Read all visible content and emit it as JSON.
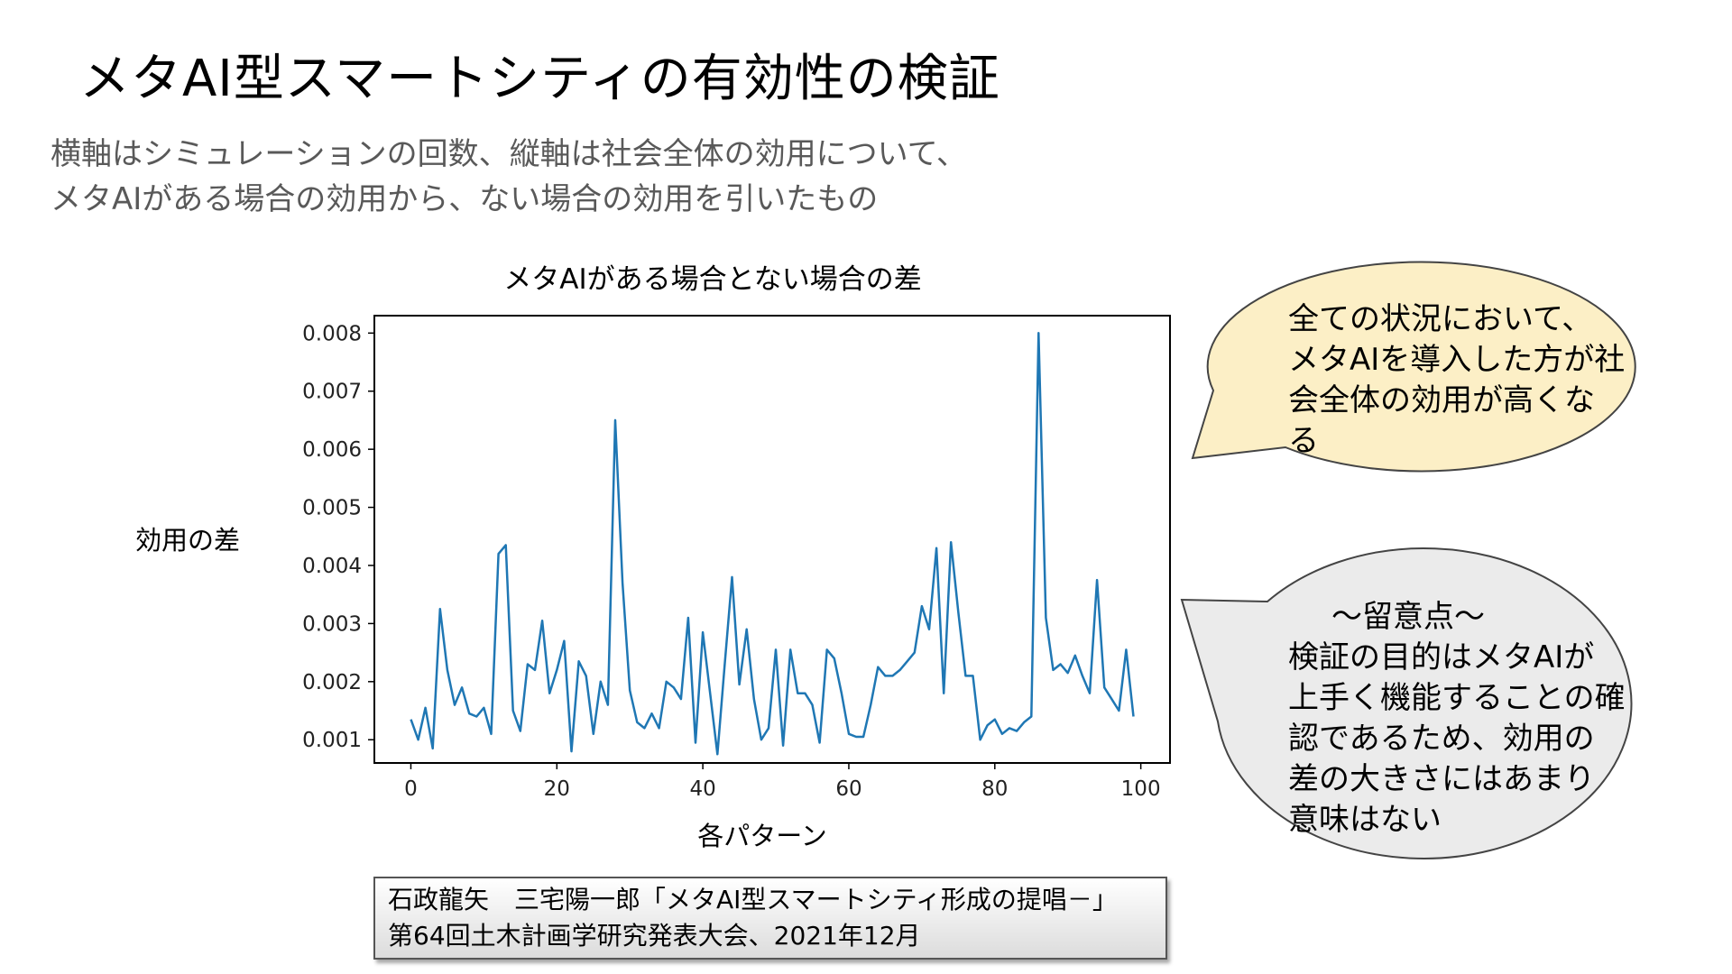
{
  "slide": {
    "title": "メタAI型スマートシティの有効性の検証",
    "subtitle_lines": [
      "横軸はシミュレーションの回数、縦軸は社会全体の効用について、",
      "メタAIがある場合の効用から、ない場合の効用を引いたもの"
    ]
  },
  "callouts": {
    "top": {
      "lines": [
        "全ての状況において、",
        "メタAIを導入した方が社",
        "会全体の効用が高くな",
        "る"
      ],
      "fill": "#fcefc6"
    },
    "bottom": {
      "heading": "～留意点～",
      "lines": [
        "検証の目的はメタAIが",
        "上手く機能することの確",
        "認であるため、効用の",
        "差の大きさにはあまり",
        "意味はない"
      ],
      "fill": "#ebebeb"
    }
  },
  "citation": {
    "lines": [
      "石政龍矢　三宅陽一郎「メタAI型スマートシティ形成の提唱－」",
      "第64回土木計画学研究発表大会、2021年12月"
    ]
  },
  "colors": {
    "line": "#1f77b4",
    "subtitle": "#595959"
  },
  "chart_data": {
    "type": "line",
    "title": "メタAIがある場合とない場合の差",
    "xlabel": "各パターン",
    "ylabel": "効用の差",
    "xlim": [
      -5,
      104
    ],
    "ylim": [
      0.0006,
      0.0083
    ],
    "xticks": [
      0,
      20,
      40,
      60,
      80,
      100
    ],
    "xtick_labels": [
      "0",
      "20",
      "40",
      "60",
      "80",
      "100"
    ],
    "yticks": [
      0.001,
      0.002,
      0.003,
      0.004,
      0.005,
      0.006,
      0.007,
      0.008
    ],
    "ytick_labels": [
      "0.001",
      "0.002",
      "0.003",
      "0.004",
      "0.005",
      "0.006",
      "0.007",
      "0.008"
    ],
    "grid": false,
    "legend": "none",
    "x": [
      0,
      1,
      2,
      3,
      4,
      5,
      6,
      7,
      8,
      9,
      10,
      11,
      12,
      13,
      14,
      15,
      16,
      17,
      18,
      19,
      20,
      21,
      22,
      23,
      24,
      25,
      26,
      27,
      28,
      29,
      30,
      31,
      32,
      33,
      34,
      35,
      36,
      37,
      38,
      39,
      40,
      41,
      42,
      43,
      44,
      45,
      46,
      47,
      48,
      49,
      50,
      51,
      52,
      53,
      54,
      55,
      56,
      57,
      58,
      59,
      60,
      61,
      62,
      63,
      64,
      65,
      66,
      67,
      68,
      69,
      70,
      71,
      72,
      73,
      74,
      75,
      76,
      77,
      78,
      79,
      80,
      81,
      82,
      83,
      84,
      85,
      86,
      87,
      88,
      89,
      90,
      91,
      92,
      93,
      94,
      95,
      96,
      97,
      98,
      99
    ],
    "values": [
      0.00135,
      0.001,
      0.00155,
      0.00085,
      0.00325,
      0.0022,
      0.0016,
      0.0019,
      0.00145,
      0.0014,
      0.00155,
      0.0011,
      0.0042,
      0.00435,
      0.0015,
      0.00115,
      0.0023,
      0.0022,
      0.00305,
      0.0018,
      0.0022,
      0.0027,
      0.0008,
      0.00235,
      0.0021,
      0.0011,
      0.002,
      0.0016,
      0.0065,
      0.0037,
      0.00185,
      0.0013,
      0.0012,
      0.00145,
      0.0012,
      0.002,
      0.0019,
      0.0017,
      0.0031,
      0.00095,
      0.00285,
      0.0018,
      0.00075,
      0.0023,
      0.0038,
      0.00195,
      0.0029,
      0.0017,
      0.001,
      0.0012,
      0.00255,
      0.0009,
      0.00255,
      0.0018,
      0.0018,
      0.0016,
      0.00095,
      0.00255,
      0.0024,
      0.0018,
      0.0011,
      0.00105,
      0.00105,
      0.0016,
      0.00225,
      0.0021,
      0.0021,
      0.0022,
      0.00235,
      0.0025,
      0.0033,
      0.0029,
      0.0043,
      0.0018,
      0.0044,
      0.0032,
      0.0021,
      0.0021,
      0.001,
      0.00125,
      0.00135,
      0.0011,
      0.0012,
      0.00115,
      0.0013,
      0.0014,
      0.008,
      0.0031,
      0.0022,
      0.0023,
      0.00215,
      0.00245,
      0.0021,
      0.0018,
      0.00375,
      0.0019,
      0.0017,
      0.0015,
      0.00255,
      0.0014
    ]
  }
}
